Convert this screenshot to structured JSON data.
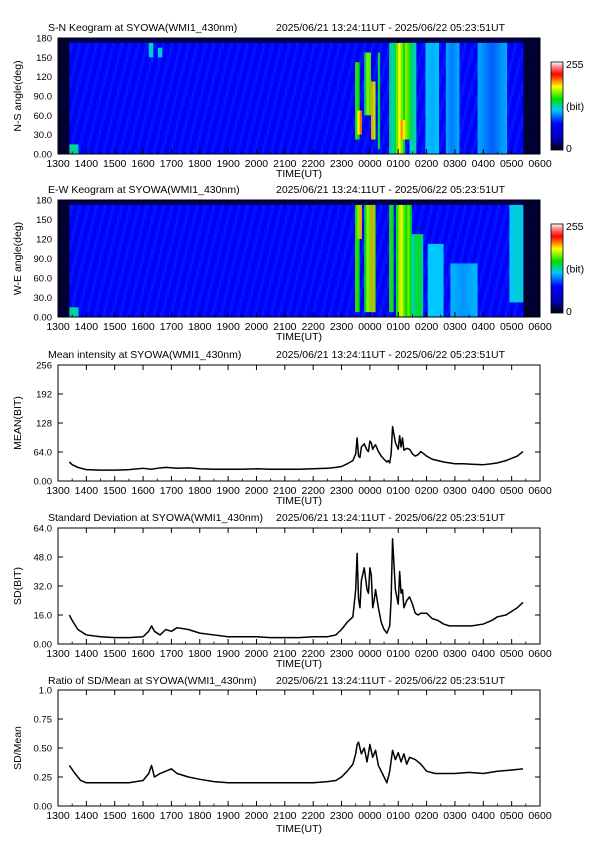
{
  "chart_data": [
    {
      "type": "heatmap",
      "title": "S-N Keogram at SYOWA(WMI1_430nm)",
      "time_range": "2025/06/21 13:24:11UT - 2025/06/22 05:23:51UT",
      "xlabel": "TIME(UT)",
      "ylabel": "N-S angle(deg)",
      "x_ticks": [
        "1300",
        "1400",
        "1500",
        "1600",
        "1700",
        "1800",
        "1900",
        "2000",
        "2100",
        "2200",
        "2300",
        "0000",
        "0100",
        "0200",
        "0300",
        "0400",
        "0500",
        "0600"
      ],
      "y_ticks": [
        "0.00",
        "30.0",
        "60.0",
        "90.0",
        "120",
        "150",
        "180"
      ],
      "xlim": [
        13,
        30
      ],
      "ylim": [
        0,
        180
      ],
      "data_start": 13.4,
      "data_end": 29.4,
      "colorbar": {
        "min": "0",
        "max": "255",
        "unit": "(bit)"
      },
      "bright_bands": [
        {
          "t": 16.3,
          "w": 0.08,
          "lo": 150,
          "hi": 170,
          "v": 0.34
        },
        {
          "t": 16.6,
          "w": 0.06,
          "lo": 150,
          "hi": 168,
          "v": 0.34
        },
        {
          "t": 23.55,
          "w": 0.1,
          "lo": 20,
          "hi": 140,
          "v": 0.5
        },
        {
          "t": 23.65,
          "w": 0.08,
          "lo": 30,
          "hi": 70,
          "v": 0.78
        },
        {
          "t": 23.95,
          "w": 0.12,
          "lo": 60,
          "hi": 160,
          "v": 0.55
        },
        {
          "t": 24.1,
          "w": 0.1,
          "lo": 20,
          "hi": 110,
          "v": 0.68
        },
        {
          "t": 24.3,
          "w": 0.06,
          "lo": 10,
          "hi": 160,
          "v": 0.44
        },
        {
          "t": 24.75,
          "w": 0.06,
          "lo": 0,
          "hi": 175,
          "v": 0.4
        },
        {
          "t": 25.05,
          "w": 0.18,
          "lo": 0,
          "hi": 175,
          "v": 0.58
        },
        {
          "t": 25.3,
          "w": 0.18,
          "lo": 20,
          "hi": 170,
          "v": 0.52
        },
        {
          "t": 25.15,
          "w": 0.12,
          "lo": 25,
          "hi": 50,
          "v": 0.7
        },
        {
          "t": 25.55,
          "w": 0.12,
          "lo": 0,
          "hi": 175,
          "v": 0.36
        },
        {
          "t": 26.2,
          "w": 0.2,
          "lo": 0,
          "hi": 175,
          "v": 0.28
        },
        {
          "t": 26.9,
          "w": 0.25,
          "lo": 0,
          "hi": 175,
          "v": 0.24
        },
        {
          "t": 28.3,
          "w": 0.5,
          "lo": 0,
          "hi": 175,
          "v": 0.22
        }
      ]
    },
    {
      "type": "heatmap",
      "title": "E-W Keogram at SYOWA(WMI1_430nm)",
      "time_range": "2025/06/21 13:24:11UT - 2025/06/22 05:23:51UT",
      "xlabel": "TIME(UT)",
      "ylabel": "W-E angle(deg)",
      "x_ticks": [
        "1300",
        "1400",
        "1500",
        "1600",
        "1700",
        "1800",
        "1900",
        "2000",
        "2100",
        "2200",
        "2300",
        "0000",
        "0100",
        "0200",
        "0300",
        "0400",
        "0500",
        "0600"
      ],
      "y_ticks": [
        "0.00",
        "30.0",
        "60.0",
        "90.0",
        "120",
        "150",
        "180"
      ],
      "xlim": [
        13,
        30
      ],
      "ylim": [
        0,
        180
      ],
      "data_start": 13.4,
      "data_end": 29.4,
      "colorbar": {
        "min": "0",
        "max": "255",
        "unit": "(bit)"
      },
      "bright_bands": [
        {
          "t": 23.55,
          "w": 0.1,
          "lo": 10,
          "hi": 170,
          "v": 0.5
        },
        {
          "t": 23.65,
          "w": 0.06,
          "lo": 120,
          "hi": 170,
          "v": 0.8
        },
        {
          "t": 23.95,
          "w": 0.14,
          "lo": 10,
          "hi": 175,
          "v": 0.55
        },
        {
          "t": 24.1,
          "w": 0.08,
          "lo": 10,
          "hi": 170,
          "v": 0.7
        },
        {
          "t": 24.75,
          "w": 0.08,
          "lo": 10,
          "hi": 175,
          "v": 0.5
        },
        {
          "t": 25.1,
          "w": 0.2,
          "lo": 0,
          "hi": 175,
          "v": 0.58
        },
        {
          "t": 25.35,
          "w": 0.15,
          "lo": 0,
          "hi": 175,
          "v": 0.5
        },
        {
          "t": 25.7,
          "w": 0.2,
          "lo": 0,
          "hi": 130,
          "v": 0.42
        },
        {
          "t": 26.3,
          "w": 0.3,
          "lo": 0,
          "hi": 110,
          "v": 0.3
        },
        {
          "t": 27.3,
          "w": 0.5,
          "lo": 0,
          "hi": 80,
          "v": 0.26
        },
        {
          "t": 29.2,
          "w": 0.25,
          "lo": 20,
          "hi": 175,
          "v": 0.32
        }
      ]
    },
    {
      "type": "line",
      "title": "Mean intensity at SYOWA(WMI1_430nm)",
      "time_range": "2025/06/21 13:24:11UT - 2025/06/22 05:23:51UT",
      "xlabel": "TIME(UT)",
      "ylabel": "MEAN(BIT)",
      "x_ticks": [
        "1300",
        "1400",
        "1500",
        "1600",
        "1700",
        "1800",
        "1900",
        "2000",
        "2100",
        "2200",
        "2300",
        "0000",
        "0100",
        "0200",
        "0300",
        "0400",
        "0500",
        "0600"
      ],
      "y_ticks": [
        "0.00",
        "64.0",
        "128",
        "192",
        "256"
      ],
      "xlim": [
        13,
        30
      ],
      "ylim": [
        0,
        256
      ],
      "x": [
        13.4,
        13.5,
        13.7,
        14.0,
        14.5,
        15.0,
        15.5,
        16.0,
        16.3,
        16.5,
        16.8,
        17.2,
        17.6,
        18.0,
        18.5,
        19.0,
        19.5,
        20.0,
        20.5,
        21.0,
        21.5,
        22.0,
        22.5,
        22.8,
        23.0,
        23.2,
        23.4,
        23.5,
        23.55,
        23.6,
        23.65,
        23.7,
        23.8,
        23.9,
        23.95,
        24.0,
        24.05,
        24.1,
        24.15,
        24.2,
        24.3,
        24.4,
        24.5,
        24.6,
        24.65,
        24.7,
        24.75,
        24.8,
        24.9,
        25.0,
        25.05,
        25.1,
        25.15,
        25.2,
        25.3,
        25.4,
        25.5,
        25.6,
        25.7,
        25.8,
        26.0,
        26.2,
        26.4,
        26.6,
        26.8,
        27.0,
        27.3,
        27.6,
        28.0,
        28.3,
        28.5,
        28.8,
        29.0,
        29.2,
        29.4
      ],
      "series": [
        {
          "values": [
            42,
            36,
            30,
            25,
            24,
            24,
            25,
            28,
            26,
            28,
            30,
            28,
            29,
            27,
            26,
            26,
            26,
            27,
            26,
            26,
            26,
            27,
            28,
            30,
            32,
            38,
            45,
            60,
            95,
            55,
            52,
            75,
            82,
            68,
            65,
            88,
            84,
            70,
            76,
            80,
            65,
            55,
            48,
            42,
            45,
            40,
            60,
            120,
            85,
            70,
            100,
            75,
            95,
            68,
            72,
            70,
            60,
            55,
            58,
            65,
            55,
            48,
            45,
            42,
            40,
            38,
            38,
            37,
            36,
            38,
            40,
            45,
            50,
            55,
            65
          ]
        }
      ]
    },
    {
      "type": "line",
      "title": "Standard Deviation at SYOWA(WMI1_430nm)",
      "time_range": "2025/06/21 13:24:11UT - 2025/06/22 05:23:51UT",
      "xlabel": "TIME(UT)",
      "ylabel": "SD(BIT)",
      "x_ticks": [
        "1300",
        "1400",
        "1500",
        "1600",
        "1700",
        "1800",
        "1900",
        "2000",
        "2100",
        "2200",
        "2300",
        "0000",
        "0100",
        "0200",
        "0300",
        "0400",
        "0500",
        "0600"
      ],
      "y_ticks": [
        "0.00",
        "16.0",
        "32.0",
        "48.0",
        "64.0"
      ],
      "xlim": [
        13,
        30
      ],
      "ylim": [
        0,
        64
      ],
      "x": [
        13.4,
        13.5,
        13.7,
        14.0,
        14.5,
        15.0,
        15.5,
        16.0,
        16.2,
        16.3,
        16.4,
        16.6,
        16.8,
        17.0,
        17.2,
        17.6,
        18.0,
        18.5,
        19.0,
        19.5,
        20.0,
        20.5,
        21.0,
        21.5,
        22.0,
        22.5,
        22.8,
        23.0,
        23.2,
        23.4,
        23.5,
        23.55,
        23.6,
        23.65,
        23.7,
        23.8,
        23.9,
        23.95,
        24.0,
        24.05,
        24.1,
        24.15,
        24.2,
        24.3,
        24.4,
        24.5,
        24.6,
        24.65,
        24.7,
        24.75,
        24.8,
        24.9,
        25.0,
        25.05,
        25.1,
        25.15,
        25.2,
        25.3,
        25.4,
        25.5,
        25.6,
        25.7,
        25.8,
        26.0,
        26.2,
        26.4,
        26.6,
        26.8,
        27.0,
        27.3,
        27.6,
        28.0,
        28.3,
        28.5,
        28.8,
        29.0,
        29.2,
        29.4
      ],
      "series": [
        {
          "values": [
            16,
            13,
            8,
            5,
            4,
            3.5,
            3.5,
            4,
            7,
            10,
            7,
            5,
            8,
            7,
            9,
            8,
            6,
            5,
            4,
            4,
            4,
            3.5,
            3.5,
            3.5,
            4,
            4,
            5,
            8,
            12,
            15,
            30,
            50,
            25,
            20,
            35,
            42,
            30,
            28,
            42,
            38,
            20,
            24,
            30,
            20,
            12,
            8,
            6,
            8,
            10,
            25,
            58,
            30,
            22,
            40,
            28,
            30,
            20,
            24,
            26,
            22,
            17,
            16,
            17,
            17,
            14,
            13,
            11,
            10,
            10,
            10,
            10,
            11,
            13,
            15,
            16,
            18,
            20,
            23
          ]
        }
      ]
    },
    {
      "type": "line",
      "title": "Ratio of SD/Mean at SYOWA(WMI1_430nm)",
      "time_range": "2025/06/21 13:24:11UT - 2025/06/22 05:23:51UT",
      "xlabel": "TIME(UT)",
      "ylabel": "SD/Mean",
      "x_ticks": [
        "1300",
        "1400",
        "1500",
        "1600",
        "1700",
        "1800",
        "1900",
        "2000",
        "2100",
        "2200",
        "2300",
        "0000",
        "0100",
        "0200",
        "0300",
        "0400",
        "0500",
        "0600"
      ],
      "y_ticks": [
        "0.00",
        "0.25",
        "0.50",
        "0.75",
        "1.0"
      ],
      "xlim": [
        13,
        30
      ],
      "ylim": [
        0,
        1
      ],
      "x": [
        13.4,
        13.6,
        13.8,
        14.0,
        14.5,
        15.0,
        15.5,
        16.0,
        16.2,
        16.3,
        16.4,
        16.6,
        16.8,
        17.0,
        17.2,
        17.6,
        18.0,
        18.5,
        19.0,
        19.5,
        20.0,
        20.5,
        21.0,
        21.5,
        22.0,
        22.5,
        22.8,
        23.0,
        23.2,
        23.4,
        23.5,
        23.55,
        23.6,
        23.7,
        23.8,
        23.9,
        24.0,
        24.1,
        24.2,
        24.3,
        24.4,
        24.5,
        24.6,
        24.7,
        24.8,
        24.9,
        25.0,
        25.1,
        25.2,
        25.3,
        25.4,
        25.6,
        25.8,
        26.0,
        26.3,
        26.6,
        27.0,
        27.5,
        28.0,
        28.5,
        29.0,
        29.4
      ],
      "series": [
        {
          "values": [
            0.35,
            0.28,
            0.22,
            0.2,
            0.2,
            0.2,
            0.2,
            0.22,
            0.28,
            0.35,
            0.25,
            0.28,
            0.3,
            0.32,
            0.28,
            0.25,
            0.23,
            0.21,
            0.2,
            0.2,
            0.2,
            0.2,
            0.2,
            0.2,
            0.2,
            0.21,
            0.22,
            0.25,
            0.3,
            0.36,
            0.45,
            0.53,
            0.55,
            0.45,
            0.5,
            0.38,
            0.53,
            0.42,
            0.48,
            0.35,
            0.3,
            0.25,
            0.2,
            0.3,
            0.48,
            0.4,
            0.46,
            0.38,
            0.45,
            0.36,
            0.42,
            0.4,
            0.36,
            0.3,
            0.28,
            0.28,
            0.28,
            0.29,
            0.28,
            0.3,
            0.31,
            0.32
          ]
        }
      ]
    }
  ]
}
